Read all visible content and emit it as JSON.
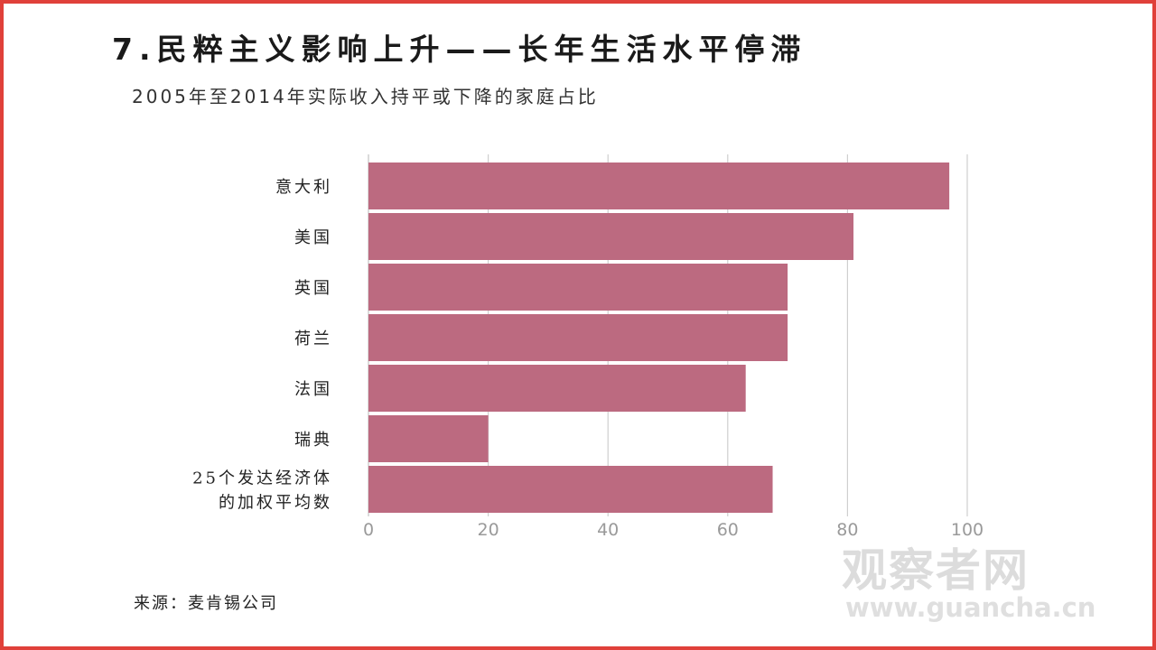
{
  "header": {
    "title": "7.民粹主义影响上升——长年生活水平停滞",
    "subtitle": "2005年至2014年实际收入持平或下降的家庭占比"
  },
  "footer": {
    "source": "来源：麦肯锡公司"
  },
  "watermark": {
    "name": "观察者网",
    "url": "www.guancha.cn"
  },
  "colors": {
    "bar": "#bc6a80",
    "grid": "#cfcfcf",
    "frame": "#e0403a"
  },
  "chart_data": {
    "type": "bar",
    "orientation": "horizontal",
    "categories": [
      [
        "意大利"
      ],
      [
        "美国"
      ],
      [
        "英国"
      ],
      [
        "荷兰"
      ],
      [
        "法国"
      ],
      [
        "瑞典"
      ],
      [
        "25个发达经济体",
        "的加权平均数"
      ]
    ],
    "values": [
      97,
      81,
      70,
      70,
      63,
      20,
      67.5
    ],
    "xlim": [
      0,
      100
    ],
    "xticks": [
      0,
      20,
      40,
      60,
      80,
      100
    ],
    "grid": true,
    "legend": "none"
  }
}
